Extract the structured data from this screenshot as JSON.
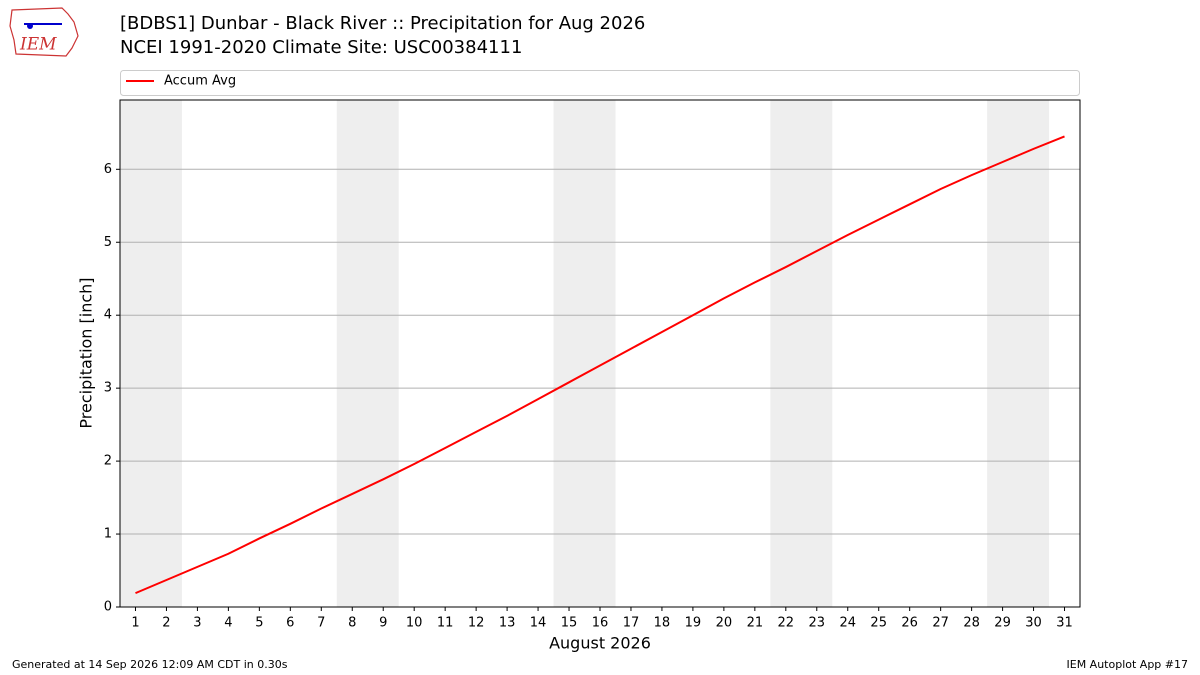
{
  "chart_data": {
    "type": "line",
    "title": "[BDBS1] Dunbar - Black River :: Precipitation for Aug 2026",
    "subtitle": "NCEI 1991-2020 Climate Site: USC00384111",
    "x_label": "August 2026",
    "y_label": "Precipitation [inch]",
    "x": [
      1,
      2,
      3,
      4,
      5,
      6,
      7,
      8,
      9,
      10,
      11,
      12,
      13,
      14,
      15,
      16,
      17,
      18,
      19,
      20,
      21,
      22,
      23,
      24,
      25,
      26,
      27,
      28,
      29,
      30,
      31
    ],
    "series": [
      {
        "name": "Accum Avg",
        "color": "#ff0000",
        "values": [
          0.19,
          0.37,
          0.55,
          0.73,
          0.94,
          1.14,
          1.35,
          1.55,
          1.75,
          1.96,
          2.18,
          2.4,
          2.62,
          2.85,
          3.08,
          3.31,
          3.54,
          3.77,
          4.0,
          4.23,
          4.45,
          4.66,
          4.88,
          5.1,
          5.31,
          5.52,
          5.73,
          5.92,
          6.1,
          6.28,
          6.45
        ]
      }
    ],
    "xlim": [
      0.5,
      31.5
    ],
    "xticks": [
      1,
      2,
      3,
      4,
      5,
      6,
      7,
      8,
      9,
      10,
      11,
      12,
      13,
      14,
      15,
      16,
      17,
      18,
      19,
      20,
      21,
      22,
      23,
      24,
      25,
      26,
      27,
      28,
      29,
      30,
      31
    ],
    "ylim": [
      0,
      6.95
    ],
    "yticks": [
      0,
      1,
      2,
      3,
      4,
      5,
      6
    ],
    "grid": true,
    "legend": "top",
    "shaded_x": [
      [
        0.5,
        2.5
      ],
      [
        7.5,
        9.5
      ],
      [
        14.5,
        16.5
      ],
      [
        21.5,
        23.5
      ],
      [
        28.5,
        30.5
      ]
    ],
    "shade_color": "#eeeeee"
  },
  "footer": {
    "left": "Generated at 14 Sep 2026 12:09 AM CDT in 0.30s",
    "right": "IEM Autoplot App #17"
  },
  "logo_text": "IEM"
}
